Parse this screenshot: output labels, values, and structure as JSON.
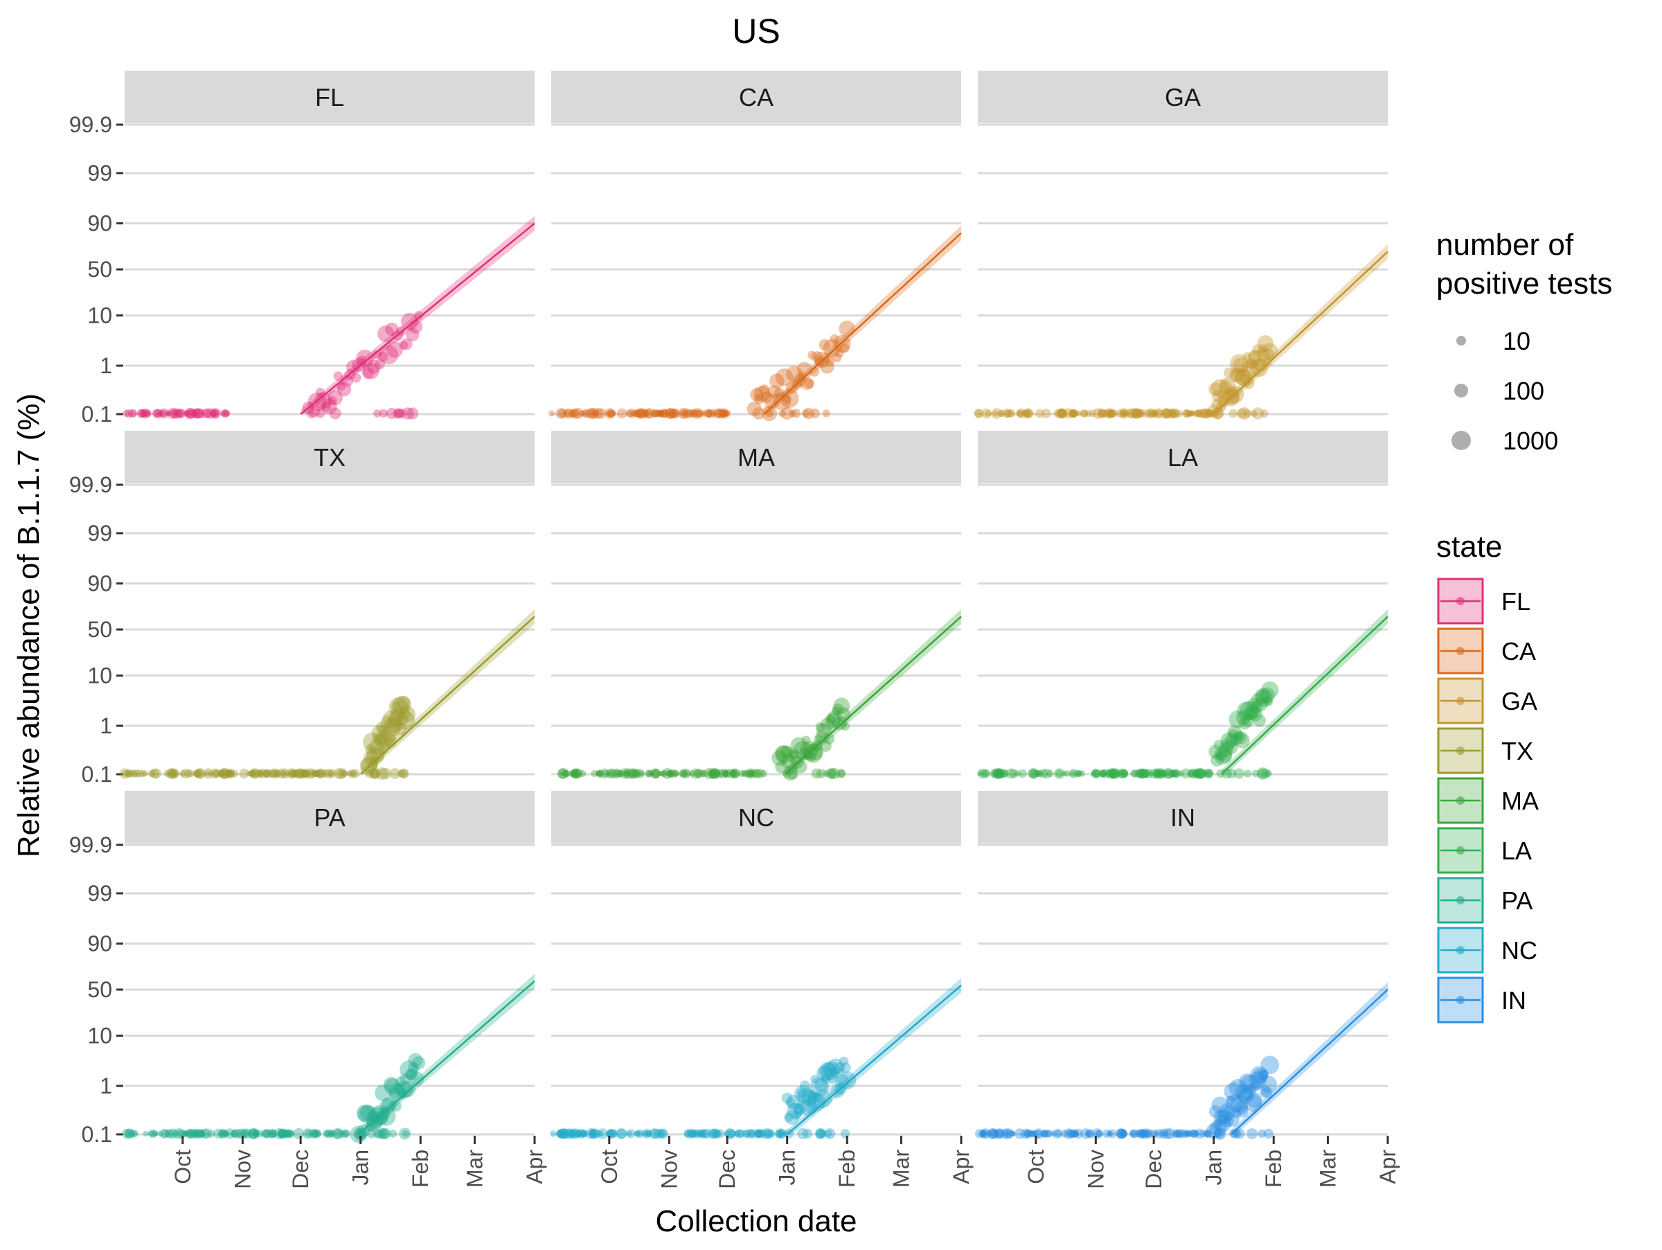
{
  "chart_data": {
    "type": "scatter",
    "title": "US",
    "xlabel": "Collection date",
    "ylabel": "Relative abundance of B.1.1.7 (%)",
    "y_scale": "logit",
    "ylim": [
      0.1,
      99.9
    ],
    "y_ticks": [
      "0.1",
      "1",
      "10",
      "50",
      "90",
      "99",
      "99.9"
    ],
    "y_tick_values": [
      0.1,
      1,
      10,
      50,
      90,
      99,
      99.9
    ],
    "xlim": [
      "2020-09-01",
      "2021-04-01"
    ],
    "x_ticks": [
      "Oct",
      "Nov",
      "Dec",
      "Jan",
      "Feb",
      "Mar",
      "Apr"
    ],
    "x_tick_dates": [
      "2020-10-01",
      "2020-11-01",
      "2020-12-01",
      "2021-01-01",
      "2021-02-01",
      "2021-03-01",
      "2021-04-01"
    ],
    "grid": true,
    "panel_strip_color": "#d9d9d9",
    "size_legend": {
      "title": [
        "number of",
        "positive tests"
      ],
      "entries": [
        "10",
        "100",
        "1000"
      ],
      "color": "#8c8c8c"
    },
    "color_legend": {
      "title": "state",
      "placement": "right"
    },
    "panels": [
      {
        "state": "FL",
        "color": "#e0307a",
        "fit": {
          "start": "2020-12-01",
          "start_value": 0.1,
          "end_value": 90
        },
        "points": {
          "baseline_from": "2020-09-01",
          "baseline_to": "2020-10-25",
          "cluster_from": "2020-12-05",
          "cluster_to": "2021-01-31",
          "value_from": 0.12,
          "value_to": 8
        }
      },
      {
        "state": "CA",
        "color": "#d96a1c",
        "fit": {
          "start": "2020-12-20",
          "start_value": 0.1,
          "end_value": 85
        },
        "points": {
          "baseline_from": "2020-09-01",
          "baseline_to": "2020-12-05",
          "cluster_from": "2020-12-15",
          "cluster_to": "2021-02-01",
          "value_from": 0.12,
          "value_to": 3
        }
      },
      {
        "state": "GA",
        "color": "#c3962d",
        "fit": {
          "start": "2021-01-01",
          "start_value": 0.1,
          "end_value": 70
        },
        "points": {
          "baseline_from": "2020-09-01",
          "baseline_to": "2020-12-31",
          "cluster_from": "2021-01-01",
          "cluster_to": "2021-01-30",
          "value_from": 0.2,
          "value_to": 2
        }
      },
      {
        "state": "TX",
        "color": "#9a9a2e",
        "fit": {
          "start": "2021-01-01",
          "start_value": 0.1,
          "end_value": 65
        },
        "points": {
          "baseline_from": "2020-09-01",
          "baseline_to": "2020-12-31",
          "cluster_from": "2021-01-05",
          "cluster_to": "2021-01-25",
          "value_from": 0.2,
          "value_to": 2.5
        }
      },
      {
        "state": "MA",
        "color": "#3aa63a",
        "fit": {
          "start": "2020-12-31",
          "start_value": 0.1,
          "end_value": 65
        },
        "points": {
          "baseline_from": "2020-09-05",
          "baseline_to": "2020-12-20",
          "cluster_from": "2020-12-28",
          "cluster_to": "2021-01-31",
          "value_from": 0.12,
          "value_to": 1.5
        }
      },
      {
        "state": "LA",
        "color": "#33ad4c",
        "fit": {
          "start": "2021-01-05",
          "start_value": 0.1,
          "end_value": 65
        },
        "points": {
          "baseline_from": "2020-09-01",
          "baseline_to": "2020-12-31",
          "cluster_from": "2021-01-02",
          "cluster_to": "2021-01-30",
          "value_from": 0.25,
          "value_to": 4
        }
      },
      {
        "state": "PA",
        "color": "#23ad8e",
        "fit": {
          "start": "2020-12-31",
          "start_value": 0.1,
          "end_value": 60
        },
        "points": {
          "baseline_from": "2020-09-01",
          "baseline_to": "2020-12-25",
          "cluster_from": "2020-12-31",
          "cluster_to": "2021-01-31",
          "value_from": 0.12,
          "value_to": 2
        }
      },
      {
        "state": "NC",
        "color": "#22a9c9",
        "fit": {
          "start": "2021-01-01",
          "start_value": 0.1,
          "end_value": 55
        },
        "points": {
          "baseline_from": "2020-09-01",
          "baseline_to": "2020-12-31",
          "cluster_from": "2021-01-01",
          "cluster_to": "2021-02-01",
          "value_from": 0.3,
          "value_to": 2
        }
      },
      {
        "state": "IN",
        "color": "#2b8fe0",
        "fit": {
          "start": "2021-01-10",
          "start_value": 0.1,
          "end_value": 50
        },
        "points": {
          "baseline_from": "2020-09-01",
          "baseline_to": "2020-12-31",
          "cluster_from": "2021-01-01",
          "cluster_to": "2021-01-30",
          "value_from": 0.2,
          "value_to": 1.5
        }
      }
    ]
  }
}
